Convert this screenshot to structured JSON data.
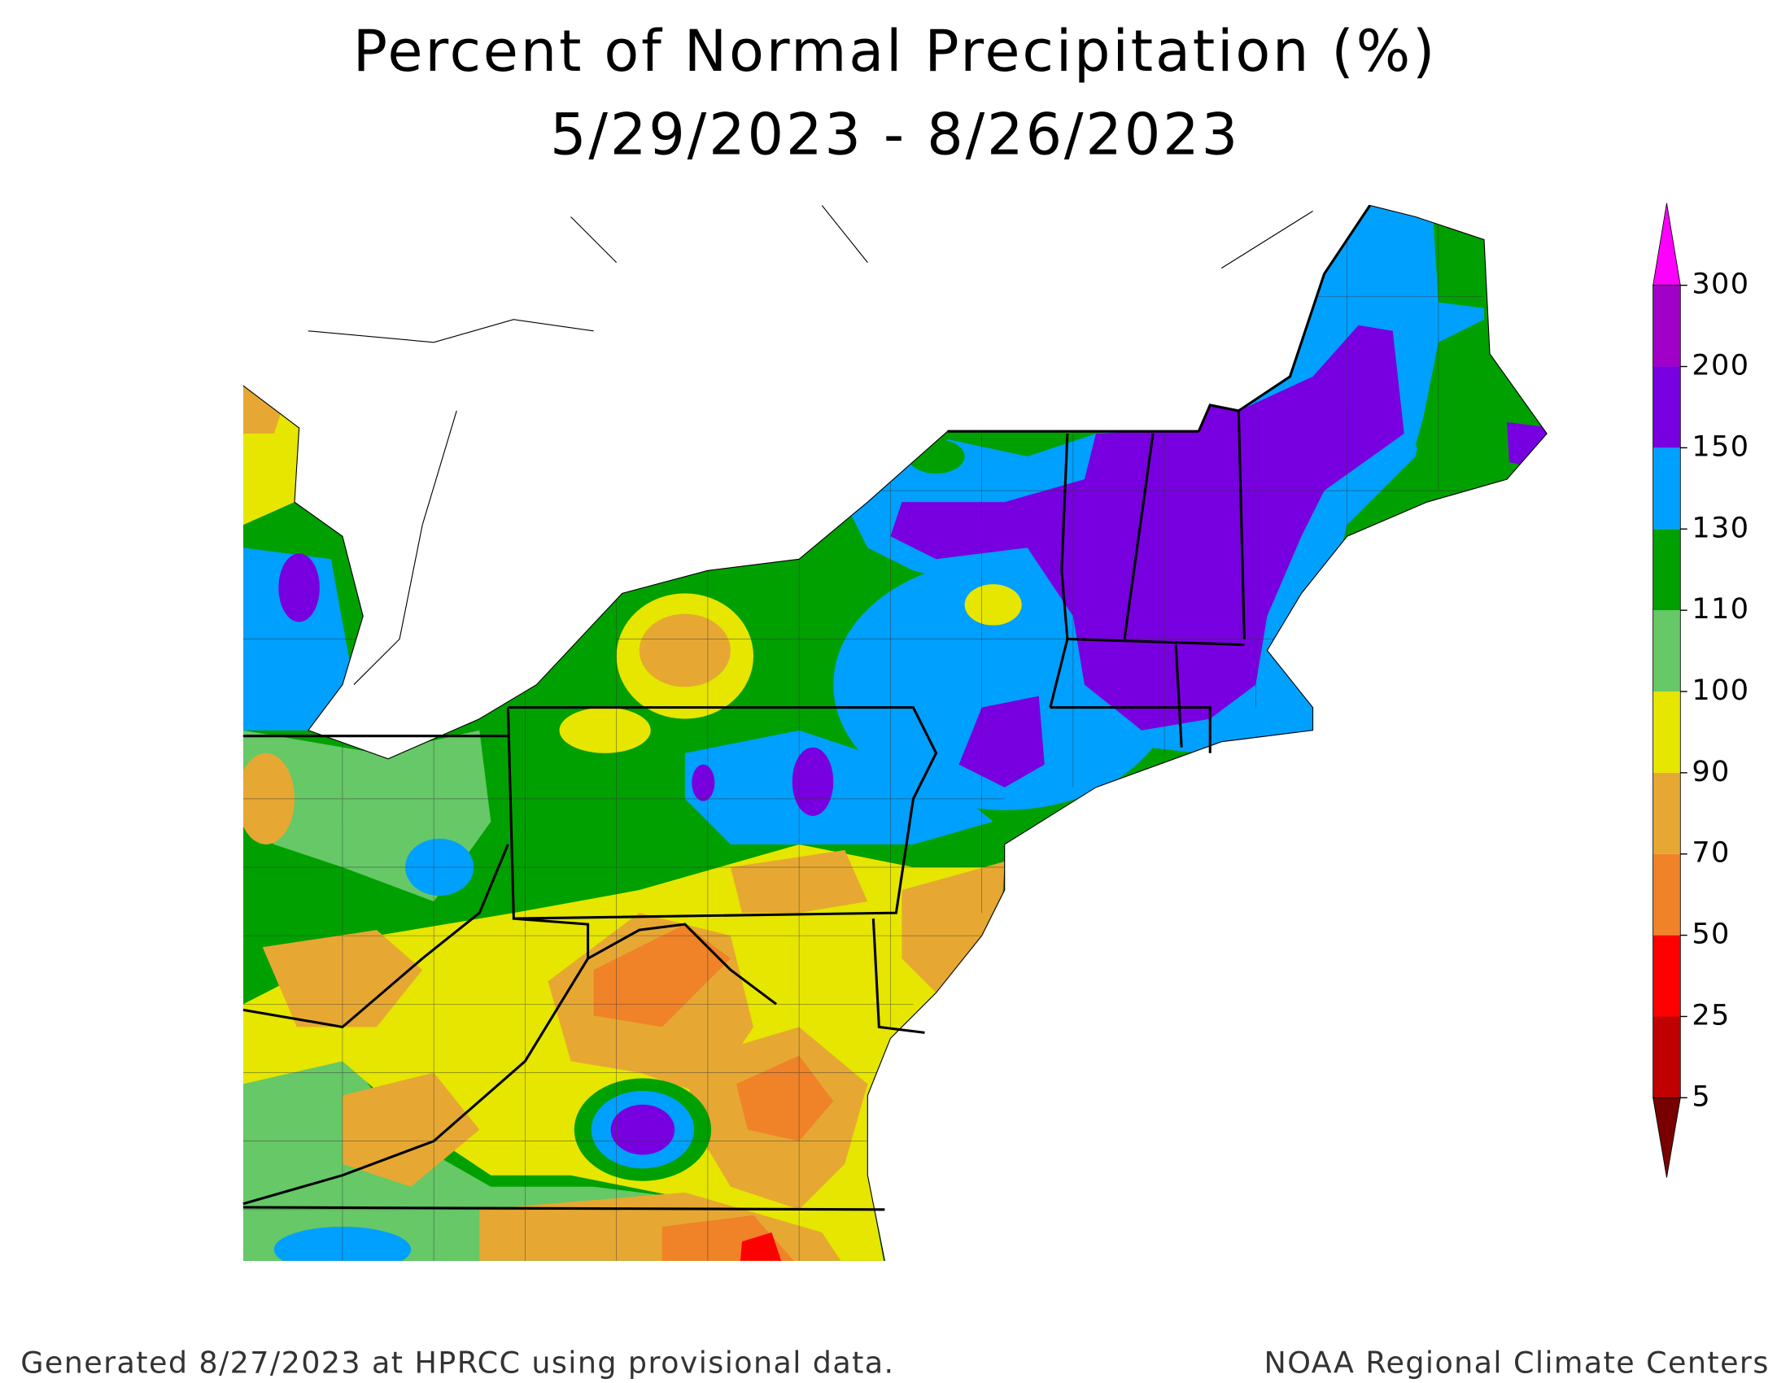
{
  "title": [
    "Percent of Normal Precipitation (%)",
    "5/29/2023 - 8/26/2023"
  ],
  "legend": {
    "levels": [
      5,
      25,
      50,
      70,
      90,
      100,
      110,
      130,
      150,
      200,
      300
    ],
    "colors": [
      "#780000",
      "#c00000",
      "#ff0000",
      "#f08228",
      "#e6a832",
      "#e6e600",
      "#66c866",
      "#00a000",
      "#00a0ff",
      "#7800e0",
      "#a000c8",
      "#ff00ff"
    ]
  },
  "footer": {
    "left": "Generated 8/27/2023 at HPRCC using provisional data.",
    "right": "NOAA Regional Climate Centers"
  }
}
